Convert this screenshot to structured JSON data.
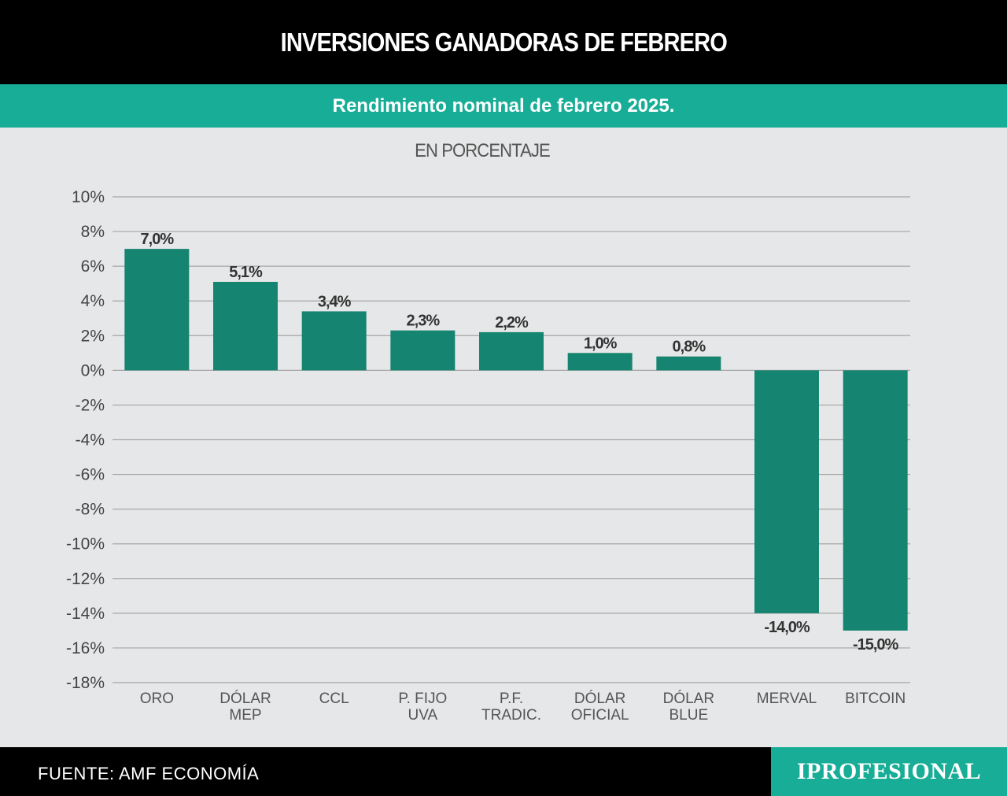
{
  "header": {
    "title": "INVERSIONES GANADORAS DE FEBRERO",
    "subtitle": "Rendimiento nominal de febrero 2025."
  },
  "footer": {
    "source": "FUENTE: AMF ECONOMÍA",
    "brand": "IPROFESIONAL"
  },
  "colors": {
    "bar": "#158470",
    "accent": "#17ad96",
    "background": "#e6e7e8",
    "grid": "#a6a6a6"
  },
  "chart_data": {
    "type": "bar",
    "title": "INVERSIONES GANADORAS DE FEBRERO",
    "subtitle": "Rendimiento nominal de febrero 2025.",
    "ylabel": "EN PORCENTAJE",
    "ylim": [
      -18,
      10
    ],
    "yticks": [
      10,
      8,
      6,
      4,
      2,
      0,
      -2,
      -4,
      -6,
      -8,
      -10,
      -12,
      -14,
      -16,
      -18
    ],
    "ytick_labels": [
      "10%",
      "8%",
      "6%",
      "4%",
      "2%",
      "0%",
      "-2%",
      "-4%",
      "-6%",
      "-8%",
      "-10%",
      "-12%",
      "-14%",
      "-16%",
      "-18%"
    ],
    "grid": true,
    "categories": [
      [
        "ORO"
      ],
      [
        "DÓLAR",
        "MEP"
      ],
      [
        "CCL"
      ],
      [
        "P. FIJO",
        "UVA"
      ],
      [
        "P.F.",
        "TRADIC."
      ],
      [
        "DÓLAR",
        "OFICIAL"
      ],
      [
        "DÓLAR",
        "BLUE"
      ],
      [
        "MERVAL"
      ],
      [
        "BITCOIN"
      ]
    ],
    "values": [
      7.0,
      5.1,
      3.4,
      2.3,
      2.2,
      1.0,
      0.8,
      -14.0,
      -15.0
    ],
    "value_labels": [
      "7,0%",
      "5,1%",
      "3,4%",
      "2,3%",
      "2,2%",
      "1,0%",
      "0,8%",
      "-14,0%",
      "-15,0%"
    ]
  }
}
